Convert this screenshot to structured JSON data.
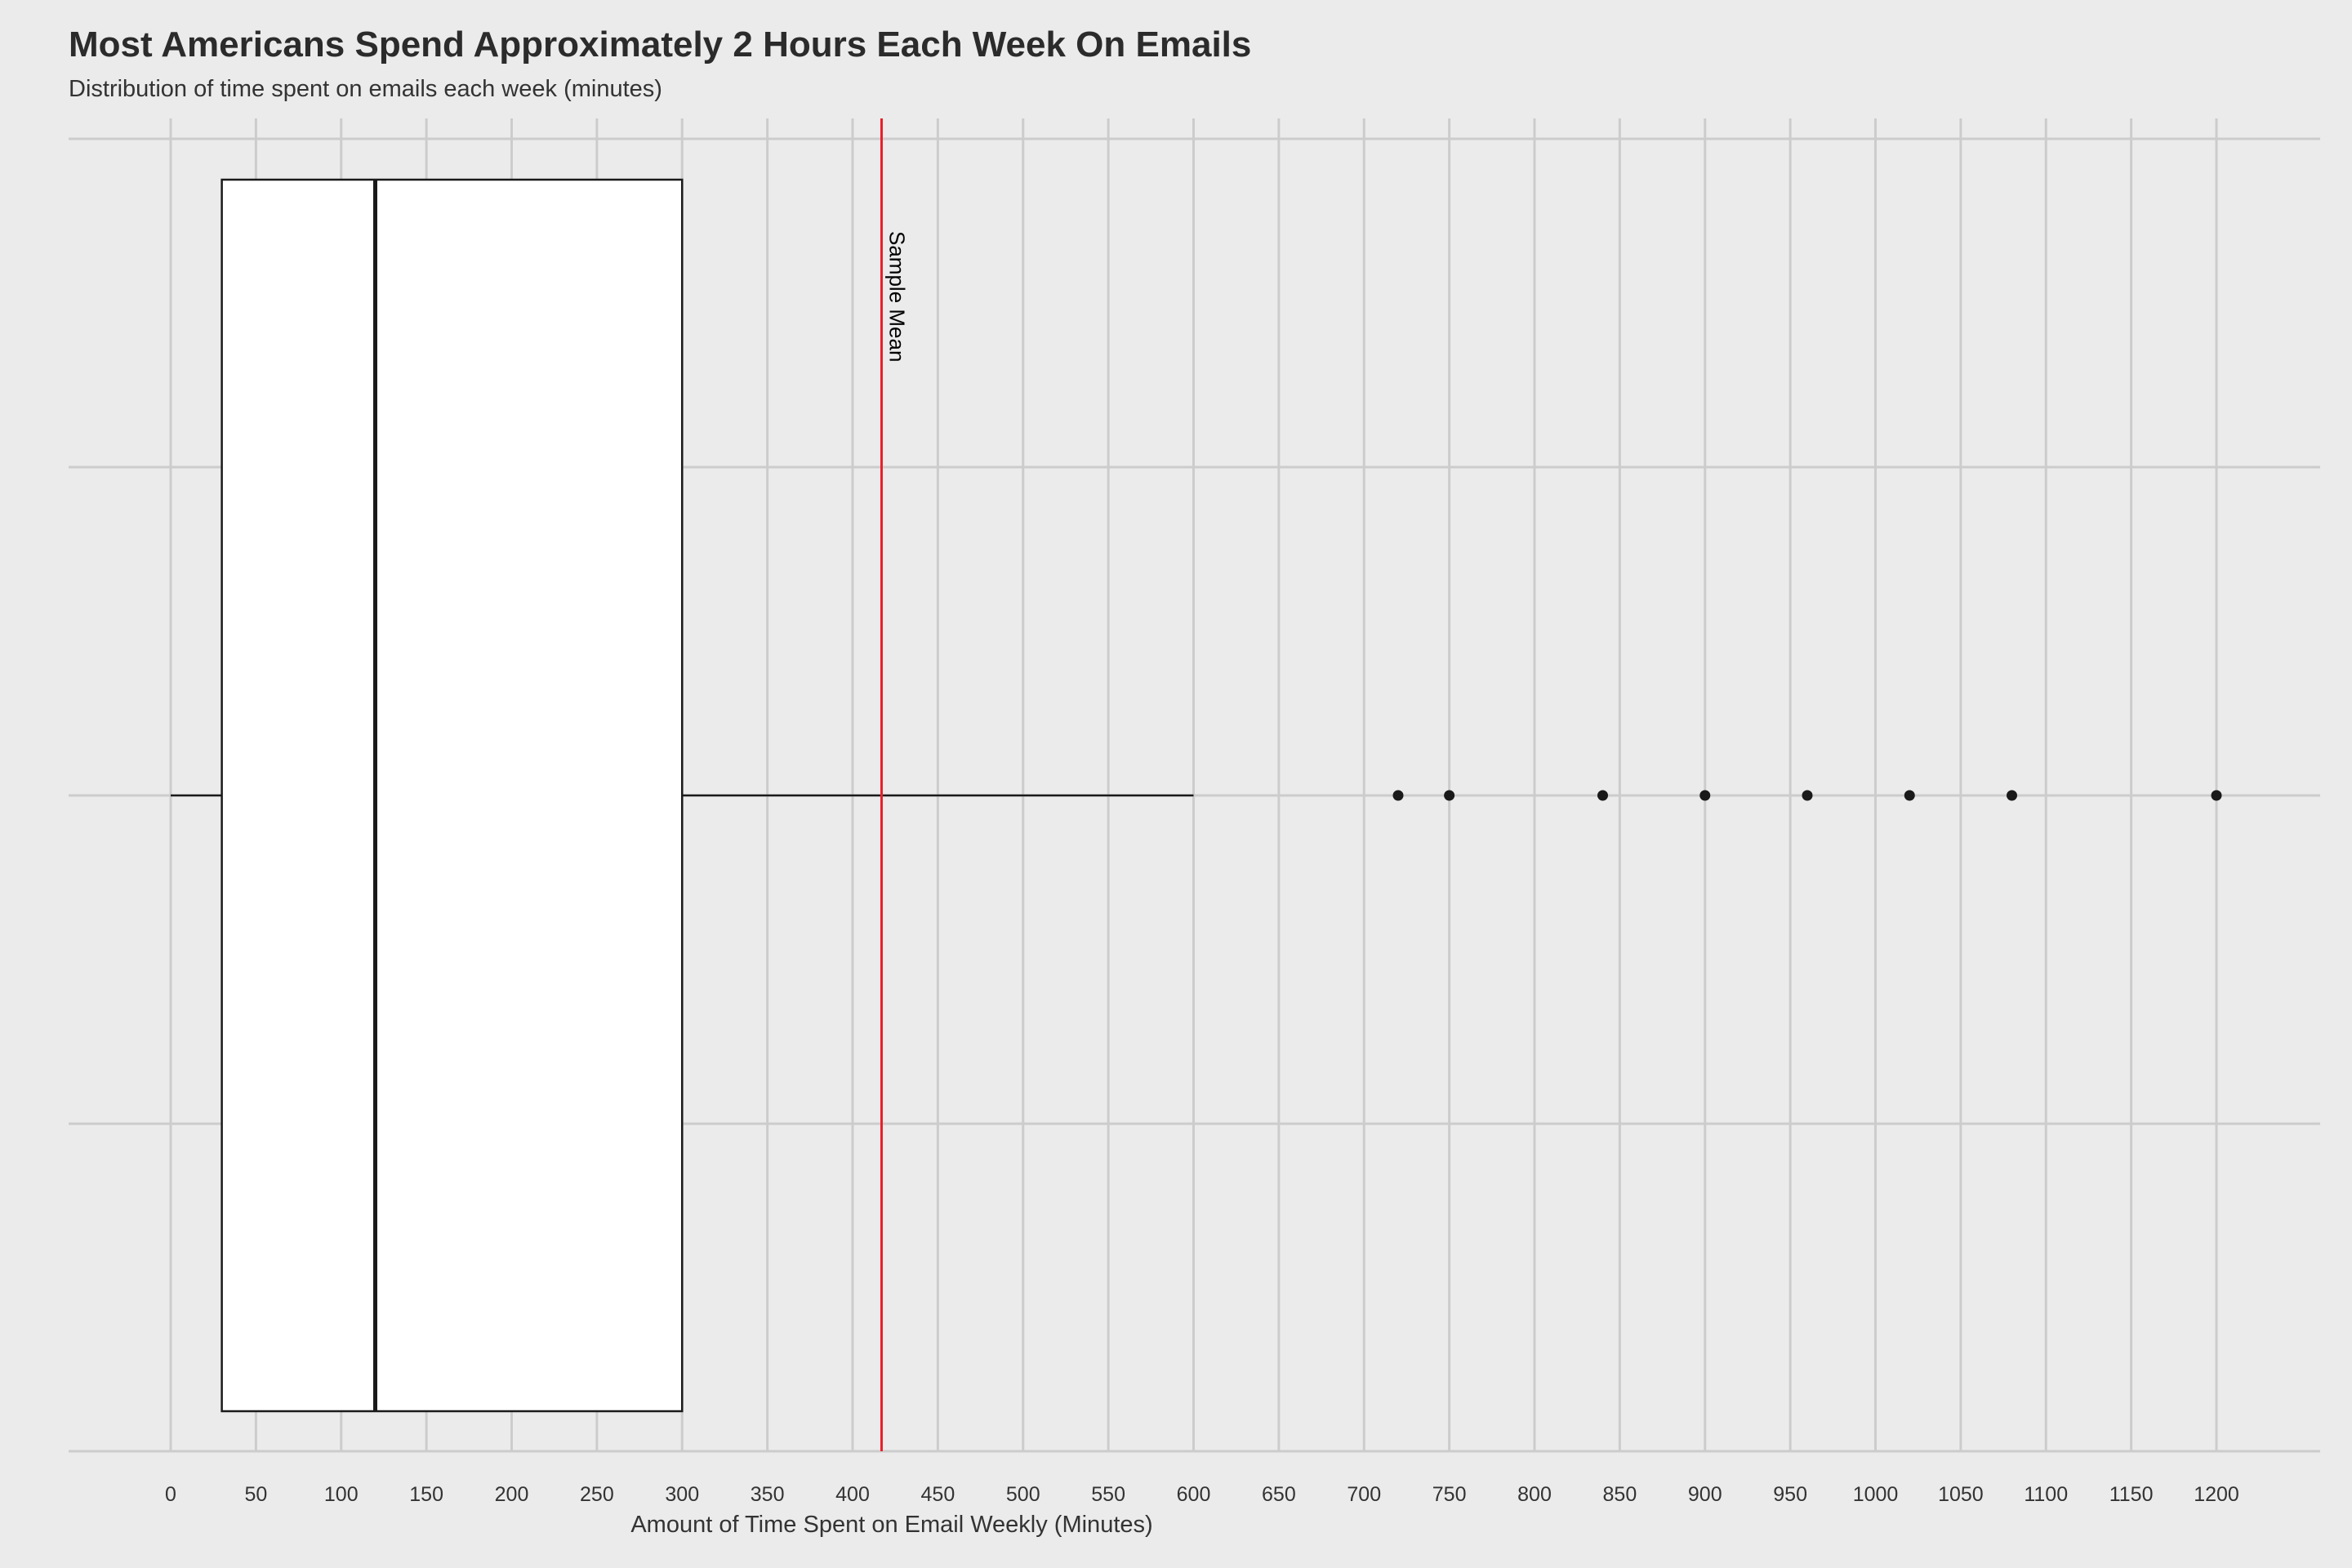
{
  "title": "Most Americans Spend Approximately 2 Hours Each Week On Emails",
  "subtitle": "Distribution of time spent on emails each week (minutes)",
  "colors": {
    "background": "#ebebeb",
    "grid": "#cccccc",
    "box_fill": "#ffffff",
    "box_stroke": "#1a1a1a",
    "mean_line": "#e8202a",
    "outlier": "#1a1a1a"
  },
  "chart_data": {
    "type": "boxplot",
    "orientation": "horizontal",
    "xlabel": "Amount of Time Spent on Email Weekly (Minutes)",
    "ylabel": "",
    "xlim": [
      -60,
      1260
    ],
    "x_ticks": [
      0,
      50,
      100,
      150,
      200,
      250,
      300,
      350,
      400,
      450,
      500,
      550,
      600,
      650,
      700,
      750,
      800,
      850,
      900,
      950,
      1000,
      1050,
      1100,
      1150,
      1200
    ],
    "grid": true,
    "box": {
      "whisker_low": 0,
      "q1": 30,
      "median": 120,
      "q3": 300,
      "whisker_high": 600
    },
    "outliers": [
      720,
      750,
      840,
      900,
      960,
      1020,
      1080,
      1200
    ],
    "mean": {
      "value": 417,
      "label": "Sample Mean"
    }
  }
}
